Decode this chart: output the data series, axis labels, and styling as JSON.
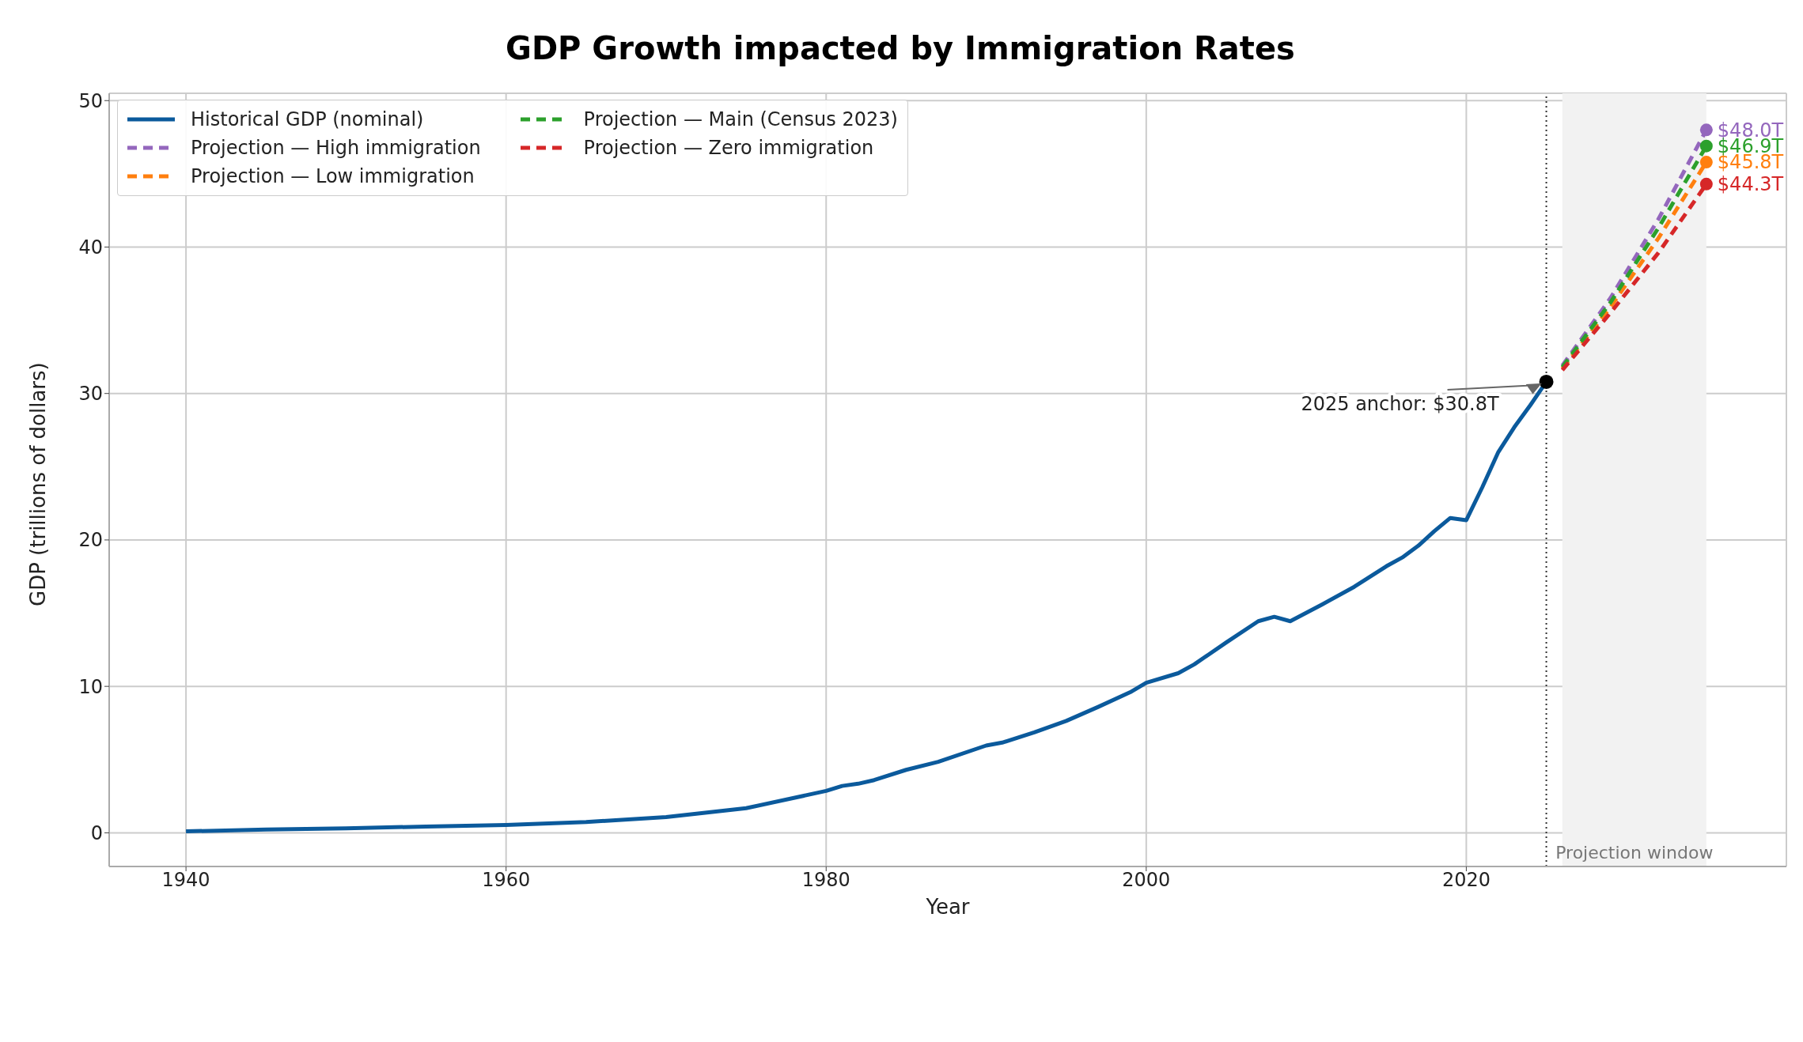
{
  "chart_data": {
    "type": "line",
    "title": "GDP Growth impacted by Immigration Rates",
    "xlabel": "Year",
    "ylabel": "GDP (trillions of dollars)",
    "xlim": [
      1935.2,
      2040
    ],
    "xticks": [
      1940,
      1960,
      1980,
      2000,
      2020
    ],
    "ylim": [
      -2.3,
      50.5
    ],
    "yticks": [
      0,
      10,
      20,
      30,
      40,
      50
    ],
    "grid": true,
    "legend": "top left",
    "series": [
      {
        "name": "Historical GDP (nominal)",
        "color": "#0b5a9c",
        "line_style": "solid",
        "x": [
          1940,
          1945,
          1950,
          1955,
          1960,
          1965,
          1970,
          1975,
          1980,
          1981,
          1982,
          1983,
          1985,
          1987,
          1990,
          1991,
          1993,
          1995,
          1997,
          1999,
          2000,
          2002,
          2003,
          2005,
          2007,
          2008,
          2009,
          2011,
          2013,
          2015,
          2016,
          2017,
          2018,
          2019,
          2020,
          2021,
          2022,
          2023,
          2024,
          2025
        ],
        "values": [
          0.1,
          0.22,
          0.3,
          0.43,
          0.54,
          0.74,
          1.07,
          1.68,
          2.86,
          3.2,
          3.35,
          3.6,
          4.3,
          4.85,
          5.96,
          6.16,
          6.86,
          7.64,
          8.6,
          9.6,
          10.25,
          10.9,
          11.5,
          13.0,
          14.45,
          14.75,
          14.45,
          15.6,
          16.8,
          18.2,
          18.8,
          19.6,
          20.6,
          21.5,
          21.35,
          23.6,
          26.0,
          27.7,
          29.2,
          30.8
        ]
      },
      {
        "name": "Projection — High immigration",
        "color": "#9467bd",
        "line_style": "dashed",
        "x": [
          2026,
          2029,
          2032,
          2035
        ],
        "values": [
          31.9,
          36.5,
          41.9,
          48.0
        ],
        "value_labels": [
          null,
          null,
          null,
          "$48.0T"
        ]
      },
      {
        "name": "Projection — Low immigration",
        "color": "#ff7f0e",
        "line_style": "dashed",
        "x": [
          2026,
          2029,
          2032,
          2035
        ],
        "values": [
          31.7,
          35.9,
          40.6,
          45.8
        ],
        "value_labels": [
          null,
          null,
          null,
          "$45.8T"
        ]
      },
      {
        "name": "Projection — Main (Census 2023)",
        "color": "#2ca02c",
        "line_style": "dashed",
        "x": [
          2026,
          2029,
          2032,
          2035
        ],
        "values": [
          31.8,
          36.2,
          41.3,
          46.9
        ],
        "value_labels": [
          null,
          null,
          null,
          "$46.9T"
        ]
      },
      {
        "name": "Projection — Zero immigration",
        "color": "#d62728",
        "line_style": "dashed",
        "x": [
          2026,
          2029,
          2032,
          2035
        ],
        "values": [
          31.6,
          35.5,
          39.6,
          44.3
        ],
        "value_labels": [
          null,
          null,
          null,
          "$44.3T"
        ]
      }
    ],
    "ref_lines": [
      {
        "axis": "x",
        "value": 2025,
        "color": "#333333",
        "line_style": "dotted"
      }
    ],
    "bands": [
      {
        "axis": "x",
        "from": 2026,
        "to": 2035,
        "label": "Projection window",
        "color": "#f2f2f2"
      }
    ],
    "annotations": [
      {
        "text": "2025 anchor: $30.8T",
        "x": 2025,
        "y": 30.8
      }
    ]
  }
}
